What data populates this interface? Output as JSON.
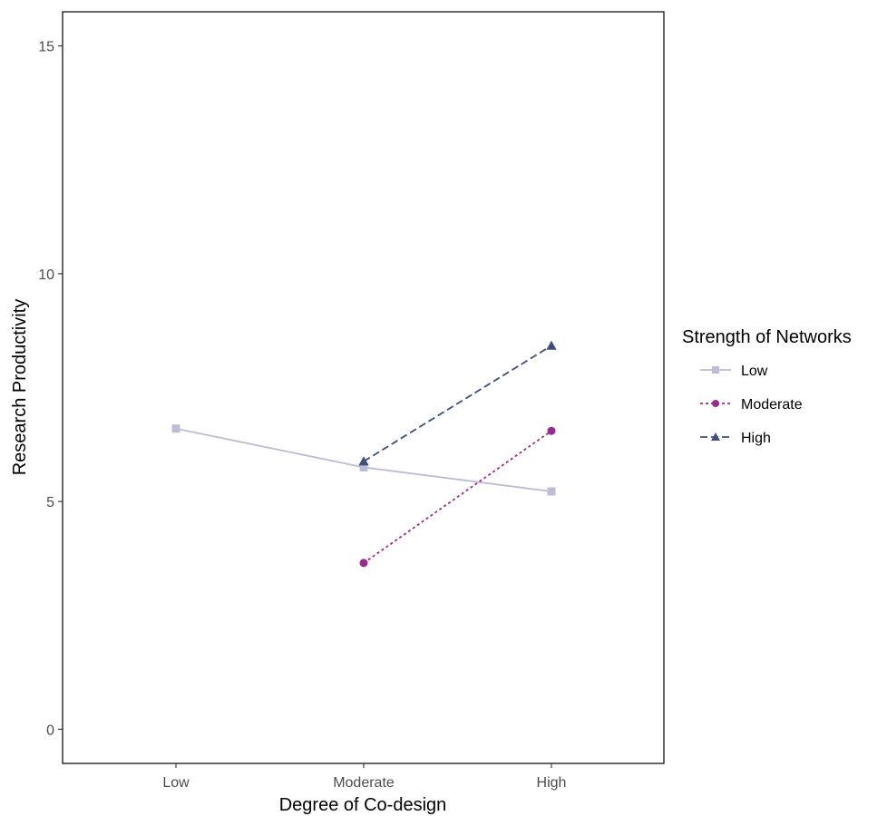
{
  "chart_data": {
    "type": "line",
    "xlabel": "Degree of Co-design",
    "ylabel": "Research Productivity",
    "categories": [
      "Low",
      "Moderate",
      "High"
    ],
    "ylim": [
      -0.75,
      15.75
    ],
    "yticks": [
      0,
      5,
      10,
      15
    ],
    "grid": false,
    "legend": {
      "title": "Strength of Networks",
      "placement": "right"
    },
    "series": [
      {
        "name": "Low",
        "values": [
          6.6,
          5.75,
          5.22
        ],
        "color": "#bcbcd6",
        "marker": "square",
        "dash": "solid"
      },
      {
        "name": "Moderate",
        "values": [
          null,
          3.65,
          6.55
        ],
        "color": "#9b2a8c",
        "marker": "circle",
        "dash": "dotted"
      },
      {
        "name": "High",
        "values": [
          null,
          5.88,
          8.42
        ],
        "color": "#3d4f7c",
        "marker": "triangle",
        "dash": "dashed"
      }
    ]
  }
}
